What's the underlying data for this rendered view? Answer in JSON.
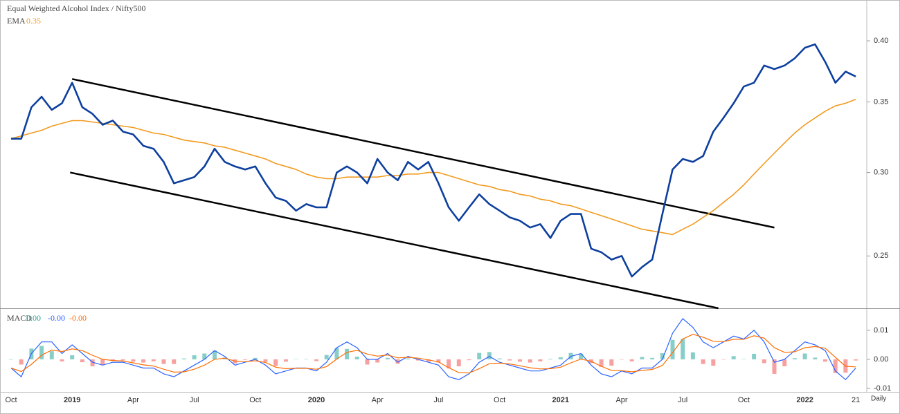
{
  "chart_data": [
    {
      "type": "line",
      "title": "Equal Weighted Alcohol Index / Nifty500",
      "log_scale": true,
      "ylim": [
        0.223,
        0.436
      ],
      "yticks": [
        0.25,
        {
          "value": 0.3,
          "label": "0.30"
        },
        0.35,
        {
          "value": 0.4,
          "label": "0.40"
        }
      ],
      "series": [
        {
          "color": "#0d3f9e",
          "values": [
            0.323,
            0.323,
            0.346,
            0.354,
            0.344,
            0.349,
            0.365,
            0.346,
            0.341,
            0.333,
            0.336,
            0.328,
            0.326,
            0.318,
            0.316,
            0.307,
            0.293,
            0.295,
            0.297,
            0.304,
            0.316,
            0.307,
            0.304,
            0.302,
            0.304,
            0.293,
            0.284,
            0.282,
            0.276,
            0.28,
            0.278,
            0.278,
            0.3,
            0.304,
            0.3,
            0.293,
            0.309,
            0.3,
            0.295,
            0.307,
            0.302,
            0.307,
            0.293,
            0.278,
            0.27,
            0.278,
            0.286,
            0.28,
            0.276,
            0.272,
            0.27,
            0.266,
            0.268,
            0.26,
            0.27,
            0.274,
            0.274,
            0.254,
            0.252,
            0.248,
            0.25,
            0.239,
            0.244,
            0.248,
            0.274,
            0.302,
            0.309,
            0.307,
            0.311,
            0.328,
            0.338,
            0.349,
            0.362,
            0.365,
            0.379,
            0.376,
            0.379,
            0.385,
            0.394,
            0.397,
            0.382,
            0.365,
            0.374,
            0.37
          ]
        },
        {
          "name": "EMA",
          "last_value": 0.35,
          "color": "#f29a1f",
          "values": [
            0.323,
            0.325,
            0.327,
            0.329,
            0.332,
            0.334,
            0.336,
            0.336,
            0.335,
            0.334,
            0.333,
            0.332,
            0.331,
            0.329,
            0.327,
            0.326,
            0.324,
            0.322,
            0.321,
            0.32,
            0.318,
            0.317,
            0.315,
            0.313,
            0.311,
            0.309,
            0.306,
            0.304,
            0.302,
            0.299,
            0.297,
            0.296,
            0.296,
            0.297,
            0.297,
            0.297,
            0.297,
            0.298,
            0.298,
            0.299,
            0.299,
            0.3,
            0.3,
            0.298,
            0.296,
            0.294,
            0.292,
            0.291,
            0.289,
            0.288,
            0.286,
            0.285,
            0.283,
            0.282,
            0.28,
            0.279,
            0.277,
            0.275,
            0.273,
            0.271,
            0.269,
            0.267,
            0.265,
            0.264,
            0.263,
            0.262,
            0.265,
            0.268,
            0.272,
            0.276,
            0.281,
            0.286,
            0.292,
            0.299,
            0.306,
            0.313,
            0.32,
            0.327,
            0.333,
            0.338,
            0.343,
            0.347,
            0.349,
            0.352
          ]
        }
      ],
      "trendlines": [
        {
          "color": "#000000",
          "x": [
            6,
            75
          ],
          "values": [
            0.368,
            0.266
          ]
        },
        {
          "color": "#000000",
          "x": [
            5.8,
            69.5
          ],
          "values": [
            0.3,
            0.223
          ]
        }
      ]
    },
    {
      "type": "macd",
      "title": "MACD",
      "x_note": "Daily",
      "categories": [
        "Oct",
        null,
        null,
        null,
        null,
        null,
        "2019",
        null,
        null,
        null,
        null,
        null,
        "Apr",
        null,
        null,
        null,
        null,
        null,
        "Jul",
        null,
        null,
        null,
        null,
        null,
        "Oct",
        null,
        null,
        null,
        null,
        null,
        "2020",
        null,
        null,
        null,
        null,
        null,
        "Apr",
        null,
        null,
        null,
        null,
        null,
        "Jul",
        null,
        null,
        null,
        null,
        null,
        "Oct",
        null,
        null,
        null,
        null,
        null,
        "2021",
        null,
        null,
        null,
        null,
        null,
        "Apr",
        null,
        null,
        null,
        null,
        null,
        "Jul",
        null,
        null,
        null,
        null,
        null,
        "Oct",
        null,
        null,
        null,
        null,
        null,
        "2022",
        null,
        null,
        null,
        null,
        "21"
      ],
      "ylim": [
        -0.0112,
        0.0171
      ],
      "yticks": [
        0.01,
        {
          "value": 0,
          "label": "0.00"
        },
        {
          "value": -0.01,
          "label": "-0.01"
        }
      ],
      "series": [
        {
          "kind": "histogram",
          "color": "#26a69a",
          "negative_color": "#ef5350",
          "last_value": {
            "value": 0,
            "label": "0.00"
          },
          "values": [
            0,
            -0.0018,
            0.0037,
            0.0046,
            0.0028,
            -0.0007,
            0.0014,
            -0.001,
            -0.0024,
            -0.002,
            -0.0006,
            -0.0004,
            -0.0008,
            -0.0011,
            -0.0007,
            -0.0016,
            -0.0016,
            0.0003,
            0.0014,
            0.002,
            0.003,
            0.0006,
            -0.0014,
            -0.0002,
            0.0005,
            -0.0009,
            -0.0023,
            -0.0008,
            0.0001,
            0.0001,
            -0.0006,
            0.0015,
            0.0039,
            0.0036,
            0.0009,
            -0.0018,
            -0.0011,
            0.0005,
            -0.0015,
            0.0003,
            -0.0004,
            -0.0008,
            -0.0011,
            -0.0031,
            -0.0024,
            -0.0003,
            0.0022,
            0.0025,
            0.0003,
            -0.0004,
            -0.0008,
            -0.0011,
            -0.0007,
            0.0002,
            0.0007,
            0.0022,
            0.0019,
            -0.0013,
            -0.0026,
            -0.0022,
            -0.0001,
            -0.0007,
            0.0008,
            0.0005,
            0.0021,
            0.0067,
            0.007,
            0.0024,
            -0.0016,
            -0.0022,
            -0.0001,
            0.0011,
            0.0001,
            0.0019,
            -0.0013,
            -0.005,
            -0.0024,
            0.0004,
            0.002,
            0.0006,
            -0.0008,
            -0.0047,
            -0.0046,
            -0.0004
          ]
        },
        {
          "kind": "line",
          "color": "#2962ff",
          "last_value": {
            "value": 0,
            "label": "-0.00"
          },
          "values": [
            -0.003,
            -0.006,
            0.002,
            0.006,
            0.006,
            0.002,
            0.005,
            0.002,
            -0.001,
            -0.002,
            -0.001,
            -0.001,
            -0.002,
            -0.003,
            -0.003,
            -0.005,
            -0.006,
            -0.004,
            -0.002,
            0,
            0.003,
            0.001,
            -0.002,
            -0.001,
            0,
            -0.002,
            -0.005,
            -0.004,
            -0.003,
            -0.003,
            -0.004,
            -0.001,
            0.004,
            0.006,
            0.004,
            0,
            0,
            0.002,
            -0.001,
            0.001,
            0,
            -0.001,
            -0.002,
            -0.006,
            -0.007,
            -0.005,
            -0.001,
            0.001,
            -0.001,
            -0.002,
            -0.003,
            -0.004,
            -0.004,
            -0.003,
            -0.002,
            0.001,
            0.002,
            -0.002,
            -0.005,
            -0.006,
            -0.004,
            -0.005,
            -0.003,
            -0.003,
            0,
            0.009,
            0.014,
            0.011,
            0.006,
            0.004,
            0.006,
            0.008,
            0.007,
            0.01,
            0.006,
            -0.001,
            0,
            0.003,
            0.006,
            0.005,
            0.003,
            -0.004,
            -0.007,
            -0.003
          ]
        },
        {
          "kind": "line",
          "color": "#ff6d00",
          "last_value": {
            "value": 0,
            "label": "-0.00"
          },
          "values": [
            -0.003,
            -0.0042,
            -0.0017,
            0.0014,
            0.0032,
            0.0027,
            0.0036,
            0.003,
            0.0014,
            0,
            -0.0004,
            -0.0006,
            -0.0012,
            -0.0019,
            -0.0023,
            -0.0034,
            -0.0044,
            -0.0043,
            -0.0034,
            -0.002,
            0,
            0.0004,
            -0.0006,
            -0.0008,
            -0.0005,
            -0.0011,
            -0.0027,
            -0.0032,
            -0.0031,
            -0.0031,
            -0.0034,
            -0.0025,
            0.0001,
            0.0024,
            0.0031,
            0.0018,
            0.0011,
            0.0015,
            0.0005,
            0.0007,
            0.0004,
            -0.0002,
            -0.0009,
            -0.0029,
            -0.0046,
            -0.0047,
            -0.0032,
            -0.0015,
            -0.0013,
            -0.0016,
            -0.0022,
            -0.0029,
            -0.0033,
            -0.0032,
            -0.0027,
            -0.0012,
            0.0001,
            -0.0007,
            -0.0024,
            -0.0038,
            -0.0039,
            -0.0043,
            -0.0038,
            -0.0035,
            -0.0021,
            0.0023,
            0.007,
            0.0086,
            0.0076,
            0.0062,
            0.0061,
            0.0069,
            0.0069,
            0.0081,
            0.0073,
            0.004,
            0.0024,
            0.0026,
            0.004,
            0.0044,
            0.0038,
            0.0007,
            -0.0024,
            -0.0026
          ]
        }
      ]
    }
  ]
}
